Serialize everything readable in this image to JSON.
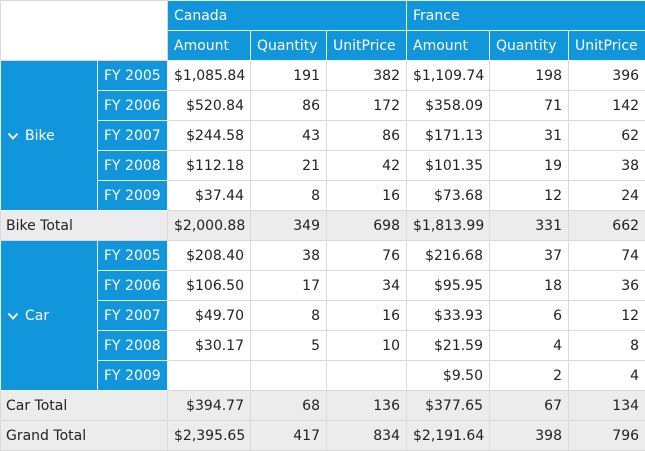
{
  "columns": {
    "countries": [
      "Canada",
      "France"
    ],
    "measures": [
      "Amount",
      "Quantity",
      "UnitPrice"
    ]
  },
  "groups": [
    {
      "name": "Bike",
      "rows": [
        {
          "year": "FY 2005",
          "canada": {
            "amount": "$1,085.84",
            "quantity": "191",
            "unitprice": "382"
          },
          "france": {
            "amount": "$1,109.74",
            "quantity": "198",
            "unitprice": "396"
          }
        },
        {
          "year": "FY 2006",
          "canada": {
            "amount": "$520.84",
            "quantity": "86",
            "unitprice": "172"
          },
          "france": {
            "amount": "$358.09",
            "quantity": "71",
            "unitprice": "142"
          }
        },
        {
          "year": "FY 2007",
          "canada": {
            "amount": "$244.58",
            "quantity": "43",
            "unitprice": "86"
          },
          "france": {
            "amount": "$171.13",
            "quantity": "31",
            "unitprice": "62"
          }
        },
        {
          "year": "FY 2008",
          "canada": {
            "amount": "$112.18",
            "quantity": "21",
            "unitprice": "42"
          },
          "france": {
            "amount": "$101.35",
            "quantity": "19",
            "unitprice": "38"
          }
        },
        {
          "year": "FY 2009",
          "canada": {
            "amount": "$37.44",
            "quantity": "8",
            "unitprice": "16"
          },
          "france": {
            "amount": "$73.68",
            "quantity": "12",
            "unitprice": "24"
          }
        }
      ],
      "total": {
        "label": "Bike Total",
        "canada": {
          "amount": "$2,000.88",
          "quantity": "349",
          "unitprice": "698"
        },
        "france": {
          "amount": "$1,813.99",
          "quantity": "331",
          "unitprice": "662"
        }
      }
    },
    {
      "name": "Car",
      "rows": [
        {
          "year": "FY 2005",
          "canada": {
            "amount": "$208.40",
            "quantity": "38",
            "unitprice": "76"
          },
          "france": {
            "amount": "$216.68",
            "quantity": "37",
            "unitprice": "74"
          }
        },
        {
          "year": "FY 2006",
          "canada": {
            "amount": "$106.50",
            "quantity": "17",
            "unitprice": "34"
          },
          "france": {
            "amount": "$95.95",
            "quantity": "18",
            "unitprice": "36"
          }
        },
        {
          "year": "FY 2007",
          "canada": {
            "amount": "$49.70",
            "quantity": "8",
            "unitprice": "16"
          },
          "france": {
            "amount": "$33.93",
            "quantity": "6",
            "unitprice": "12"
          }
        },
        {
          "year": "FY 2008",
          "canada": {
            "amount": "$30.17",
            "quantity": "5",
            "unitprice": "10"
          },
          "france": {
            "amount": "$21.59",
            "quantity": "4",
            "unitprice": "8"
          }
        },
        {
          "year": "FY 2009",
          "canada": {
            "amount": "",
            "quantity": "",
            "unitprice": ""
          },
          "france": {
            "amount": "$9.50",
            "quantity": "2",
            "unitprice": "4"
          }
        }
      ],
      "total": {
        "label": "Car Total",
        "canada": {
          "amount": "$394.77",
          "quantity": "68",
          "unitprice": "136"
        },
        "france": {
          "amount": "$377.65",
          "quantity": "67",
          "unitprice": "134"
        }
      }
    }
  ],
  "grand_total": {
    "label": "Grand Total",
    "canada": {
      "amount": "$2,395.65",
      "quantity": "417",
      "unitprice": "834"
    },
    "france": {
      "amount": "$2,191.64",
      "quantity": "398",
      "unitprice": "796"
    }
  },
  "colors": {
    "header_bg": "#1296db",
    "header_text": "#ffffff",
    "total_bg": "#ececec",
    "grid_line": "#d9d9d9"
  },
  "icons": {
    "expander": "chevron-down-icon"
  }
}
